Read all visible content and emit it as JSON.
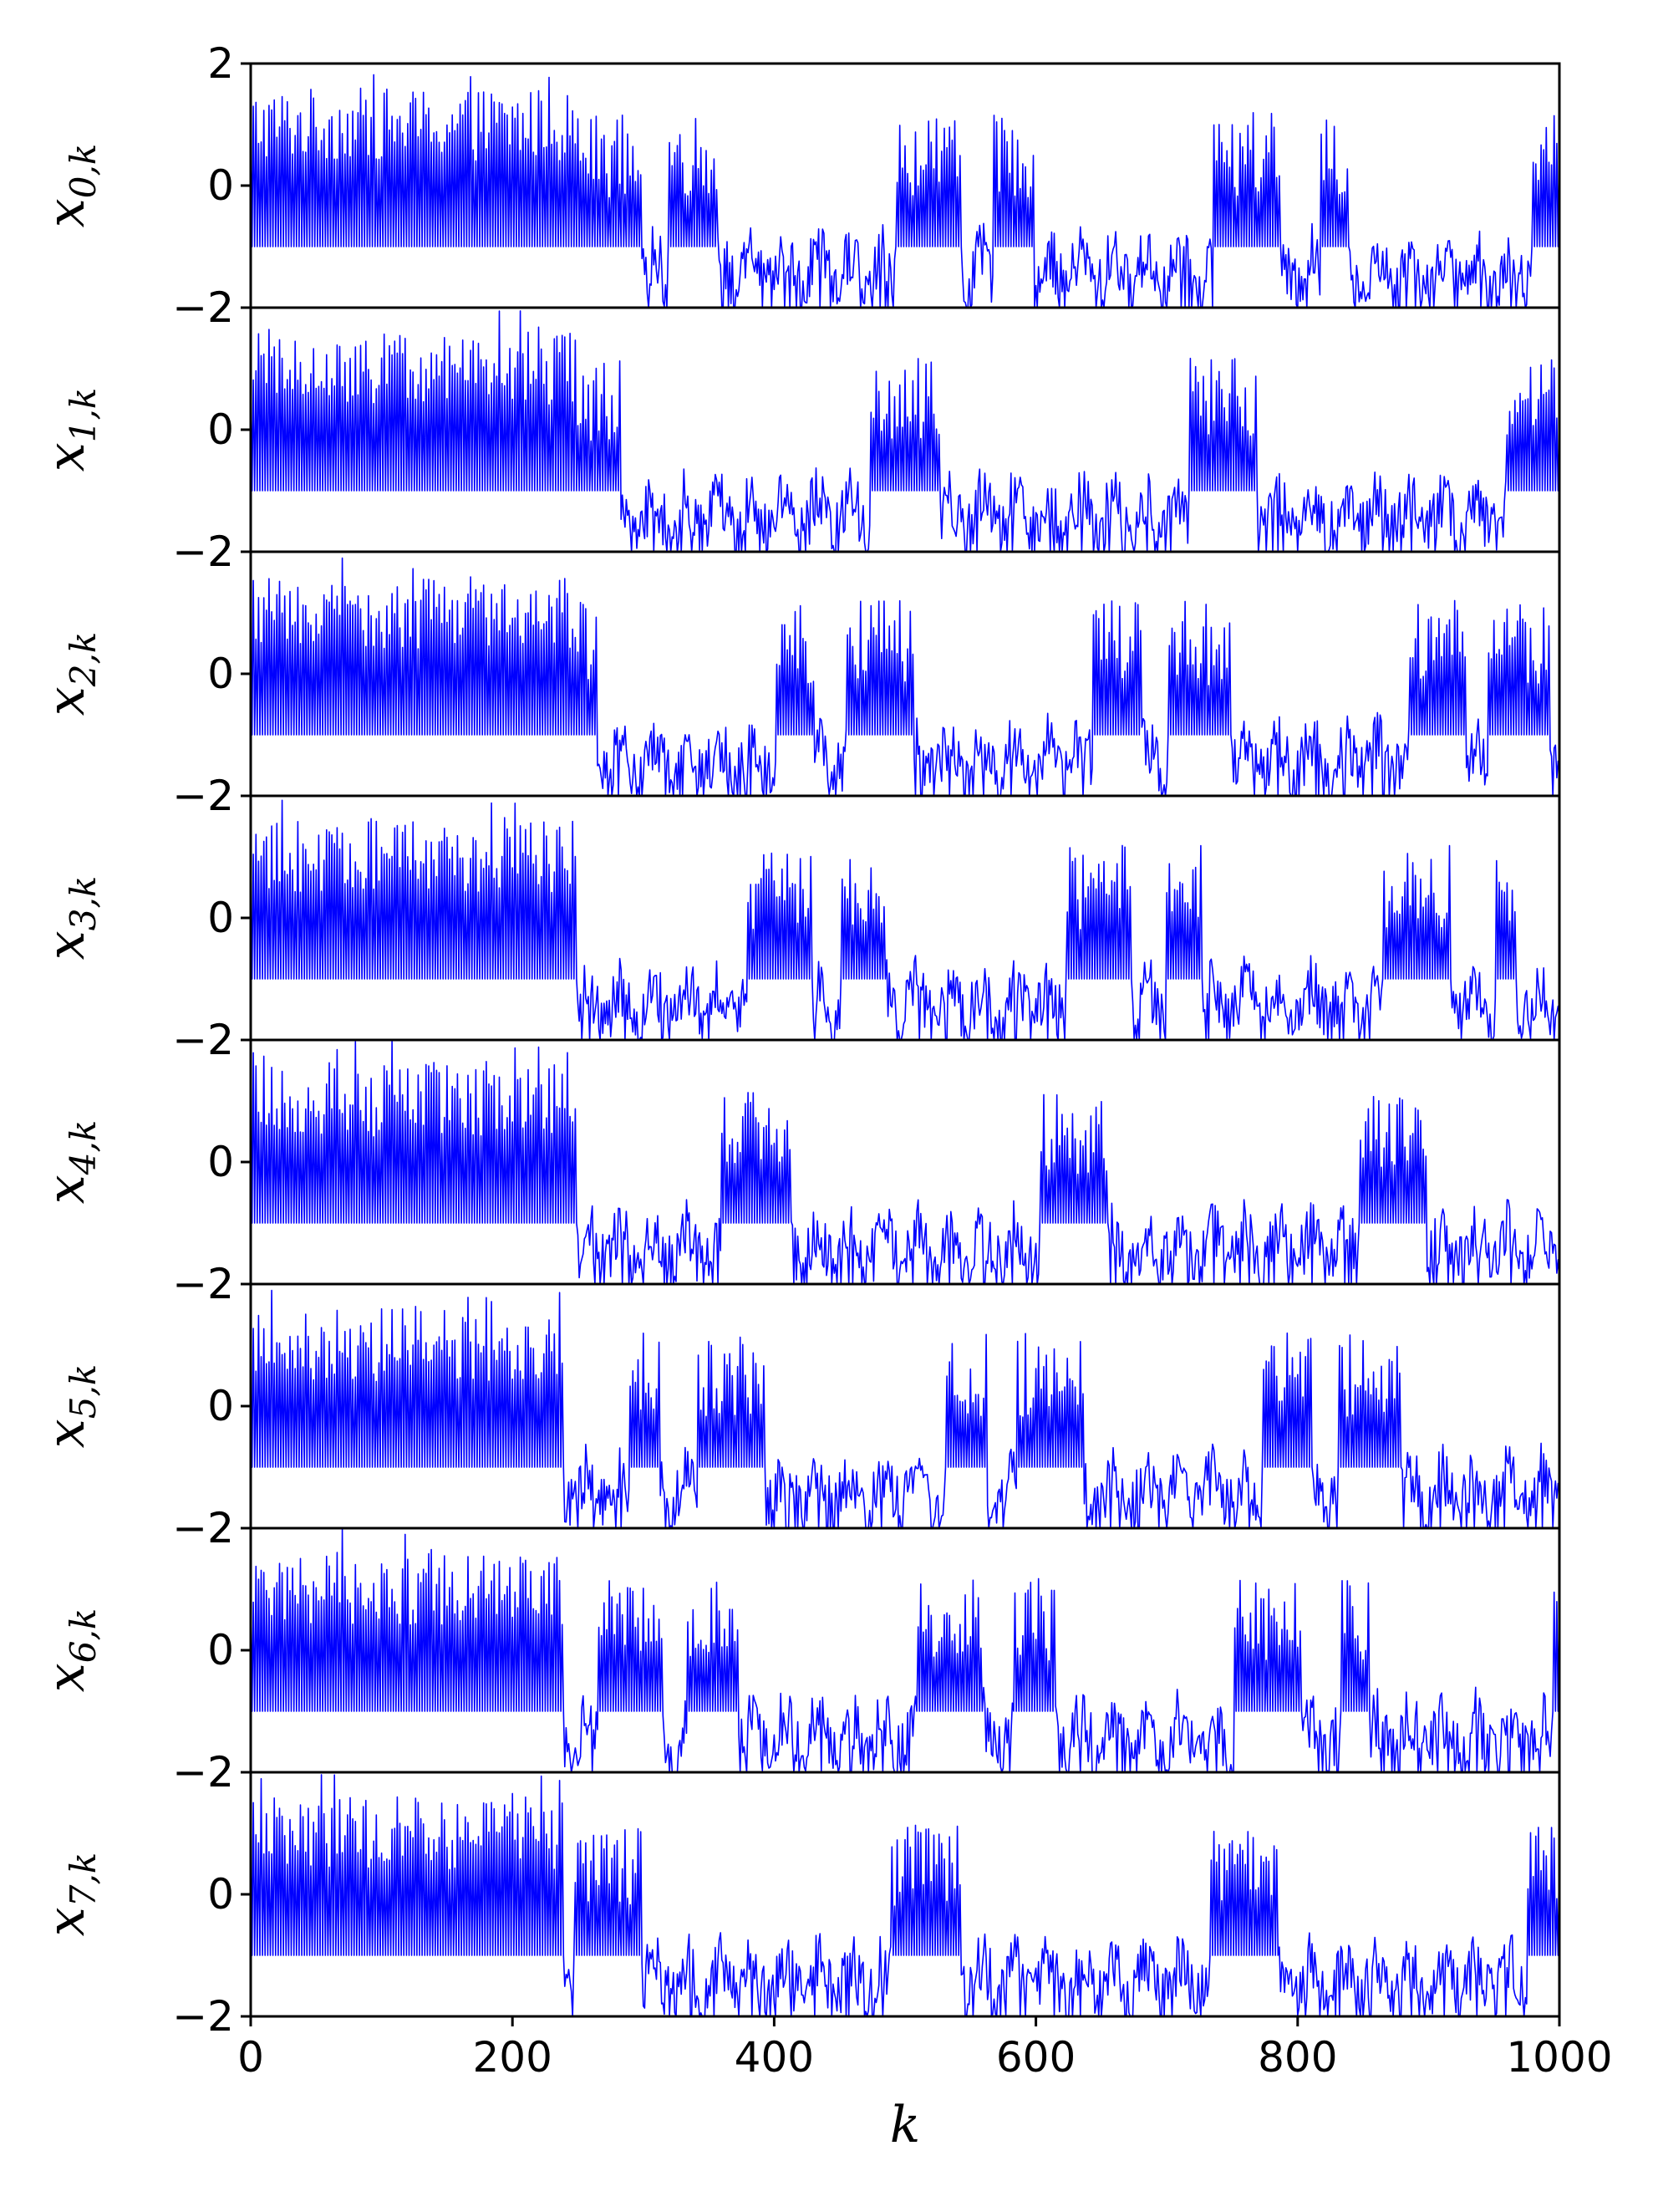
{
  "chart_data": {
    "type": "line",
    "color": "#0000ff",
    "xlabel": "k",
    "xlim": [
      0,
      1000
    ],
    "xticks": [
      0,
      200,
      400,
      600,
      800,
      1000
    ],
    "xtick_labels": [
      "0",
      "200",
      "400",
      "600",
      "800",
      "1000"
    ],
    "ylim": [
      -2,
      2
    ],
    "yticks": [
      -2,
      0,
      2
    ],
    "ytick_labels": [
      "−2",
      "0",
      "2"
    ],
    "grid": false,
    "panels": [
      {
        "ylabel": "x",
        "subscript": "0,k"
      },
      {
        "ylabel": "x",
        "subscript": "1,k"
      },
      {
        "ylabel": "x",
        "subscript": "2,k"
      },
      {
        "ylabel": "x",
        "subscript": "3,k"
      },
      {
        "ylabel": "x",
        "subscript": "4,k"
      },
      {
        "ylabel": "x",
        "subscript": "5,k"
      },
      {
        "ylabel": "x",
        "subscript": "6,k"
      },
      {
        "ylabel": "x",
        "subscript": "7,k"
      }
    ],
    "structure_note_omitted": true
  }
}
